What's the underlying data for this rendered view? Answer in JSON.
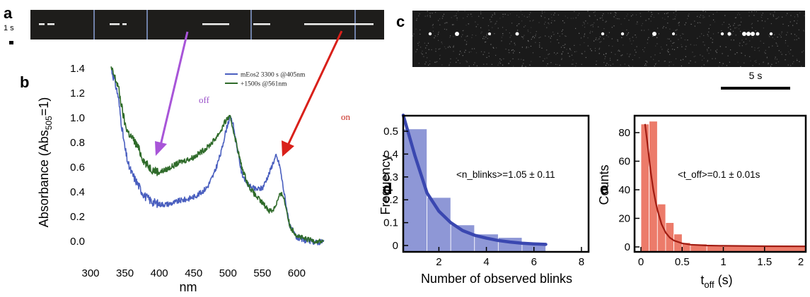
{
  "panels": {
    "a": {
      "label": "a",
      "time_scale": "1 s"
    },
    "b": {
      "label": "b",
      "arrow_off": "off",
      "arrow_on": "on"
    },
    "c": {
      "label": "c",
      "scalebar": "5 s"
    },
    "d": {
      "label": "d",
      "annotation": "<n_blinks>=1.05 ± 0.11"
    },
    "e": {
      "label": "e",
      "annotation": "<t_off>=0.1 ± 0.01s"
    }
  },
  "colors": {
    "mEos2_405": "#4a5fbf",
    "plus_561": "#2f6b2a",
    "arrow_off": "#a855d8",
    "arrow_on": "#d9201a",
    "d_bars": "#8e97d6",
    "d_fit": "#3a47b0",
    "e_bars": "#ec7b6a",
    "e_fit": "#a01c12"
  },
  "chart_data": [
    {
      "id": "b",
      "type": "line",
      "xlabel": "nm",
      "ylabel": "Absorbance (Abs",
      "ylabel_sub": "505",
      "ylabel_tail": "=1)",
      "xlim": [
        300,
        645
      ],
      "ylim": [
        -0.05,
        1.42
      ],
      "xticks": [
        300,
        350,
        400,
        450,
        500,
        550,
        600
      ],
      "yticks": [
        "0.0",
        "0.2",
        "0.4",
        "0.6",
        "0.8",
        "1.0",
        "1.2",
        "1.4"
      ],
      "legend_position": "top-right",
      "series": [
        {
          "name": "mEos2 3300 s @405nm",
          "x": [
            330,
            335,
            340,
            345,
            350,
            355,
            360,
            365,
            370,
            375,
            380,
            390,
            400,
            410,
            420,
            430,
            440,
            450,
            460,
            470,
            480,
            490,
            495,
            500,
            503,
            507,
            512,
            520,
            530,
            540,
            550,
            560,
            565,
            570,
            575,
            580,
            585,
            590,
            600,
            610,
            620,
            630,
            640
          ],
          "y": [
            1.4,
            1.3,
            1.18,
            0.95,
            0.75,
            0.62,
            0.55,
            0.5,
            0.45,
            0.4,
            0.36,
            0.32,
            0.3,
            0.3,
            0.31,
            0.33,
            0.34,
            0.36,
            0.39,
            0.44,
            0.55,
            0.72,
            0.85,
            0.96,
            1.0,
            0.96,
            0.8,
            0.55,
            0.45,
            0.42,
            0.43,
            0.55,
            0.63,
            0.69,
            0.62,
            0.45,
            0.28,
            0.12,
            0.03,
            0.01,
            0.0,
            -0.01,
            0.0
          ]
        },
        {
          "name": "+1500s @561nm",
          "x": [
            330,
            335,
            340,
            345,
            350,
            355,
            360,
            365,
            370,
            375,
            380,
            390,
            400,
            410,
            420,
            430,
            440,
            450,
            460,
            470,
            480,
            490,
            495,
            500,
            503,
            507,
            512,
            520,
            530,
            540,
            550,
            560,
            565,
            570,
            575,
            580,
            585,
            590,
            600,
            610,
            620,
            630,
            640
          ],
          "y": [
            1.4,
            1.33,
            1.26,
            1.1,
            0.95,
            0.88,
            0.84,
            0.8,
            0.75,
            0.68,
            0.63,
            0.58,
            0.56,
            0.58,
            0.61,
            0.64,
            0.66,
            0.68,
            0.72,
            0.76,
            0.82,
            0.9,
            0.96,
            1.0,
            1.0,
            0.92,
            0.8,
            0.6,
            0.45,
            0.37,
            0.31,
            0.25,
            0.25,
            0.3,
            0.37,
            0.38,
            0.26,
            0.12,
            0.05,
            0.02,
            0.01,
            0.0,
            0.0
          ]
        }
      ]
    },
    {
      "id": "d",
      "type": "bar",
      "xlabel": "Number of observed blinks",
      "ylabel": "Frequency",
      "xlim": [
        0.5,
        8.3
      ],
      "ylim": [
        -0.03,
        0.6
      ],
      "xticks": [
        "2",
        "4",
        "6",
        "8"
      ],
      "yticks": [
        "0",
        "0.1",
        "0.2",
        "0.3",
        "0.4",
        "0.5"
      ],
      "bins": [
        [
          0.5,
          1.5
        ],
        [
          1.5,
          2.5
        ],
        [
          2.5,
          3.5
        ],
        [
          3.5,
          4.5
        ],
        [
          4.5,
          5.5
        ],
        [
          5.5,
          6.5
        ]
      ],
      "values": [
        0.51,
        0.21,
        0.09,
        0.05,
        0.035,
        0.01
      ],
      "fit": {
        "x": [
          0.5,
          1,
          1.5,
          2,
          2.5,
          3,
          3.5,
          4,
          4.5,
          5,
          5.5,
          6,
          6.5
        ],
        "y": [
          0.57,
          0.39,
          0.23,
          0.15,
          0.1,
          0.065,
          0.045,
          0.032,
          0.022,
          0.015,
          0.01,
          0.007,
          0.005
        ]
      }
    },
    {
      "id": "e",
      "type": "bar",
      "xlabel": "t",
      "xlabel_sub": "off",
      "xlabel_tail": " (s)",
      "ylabel": "Counts",
      "xlim": [
        -0.05,
        2.0
      ],
      "ylim": [
        -3,
        92
      ],
      "xticks": [
        "0",
        "0.5",
        "1",
        "1.5",
        "2"
      ],
      "yticks": [
        "0",
        "20",
        "40",
        "60",
        "80"
      ],
      "bins": [
        [
          0,
          0.1
        ],
        [
          0.1,
          0.2
        ],
        [
          0.2,
          0.3
        ],
        [
          0.3,
          0.4
        ],
        [
          0.4,
          0.5
        ],
        [
          0.5,
          0.6
        ],
        [
          0.6,
          0.8
        ],
        [
          0.8,
          1.0
        ],
        [
          1.0,
          1.5
        ],
        [
          1.5,
          2.0
        ]
      ],
      "values": [
        86,
        88,
        30,
        17,
        9,
        3,
        2,
        1,
        1,
        1
      ],
      "fit": {
        "x": [
          0.05,
          0.08,
          0.1,
          0.12,
          0.15,
          0.18,
          0.2,
          0.25,
          0.3,
          0.35,
          0.4,
          0.5,
          0.6,
          0.8,
          1.0,
          1.5,
          2.0
        ],
        "y": [
          86,
          72,
          62,
          52,
          40,
          31,
          26,
          16,
          10,
          6.5,
          4.5,
          2.5,
          1.6,
          1.0,
          0.8,
          0.5,
          0.4
        ]
      }
    }
  ]
}
